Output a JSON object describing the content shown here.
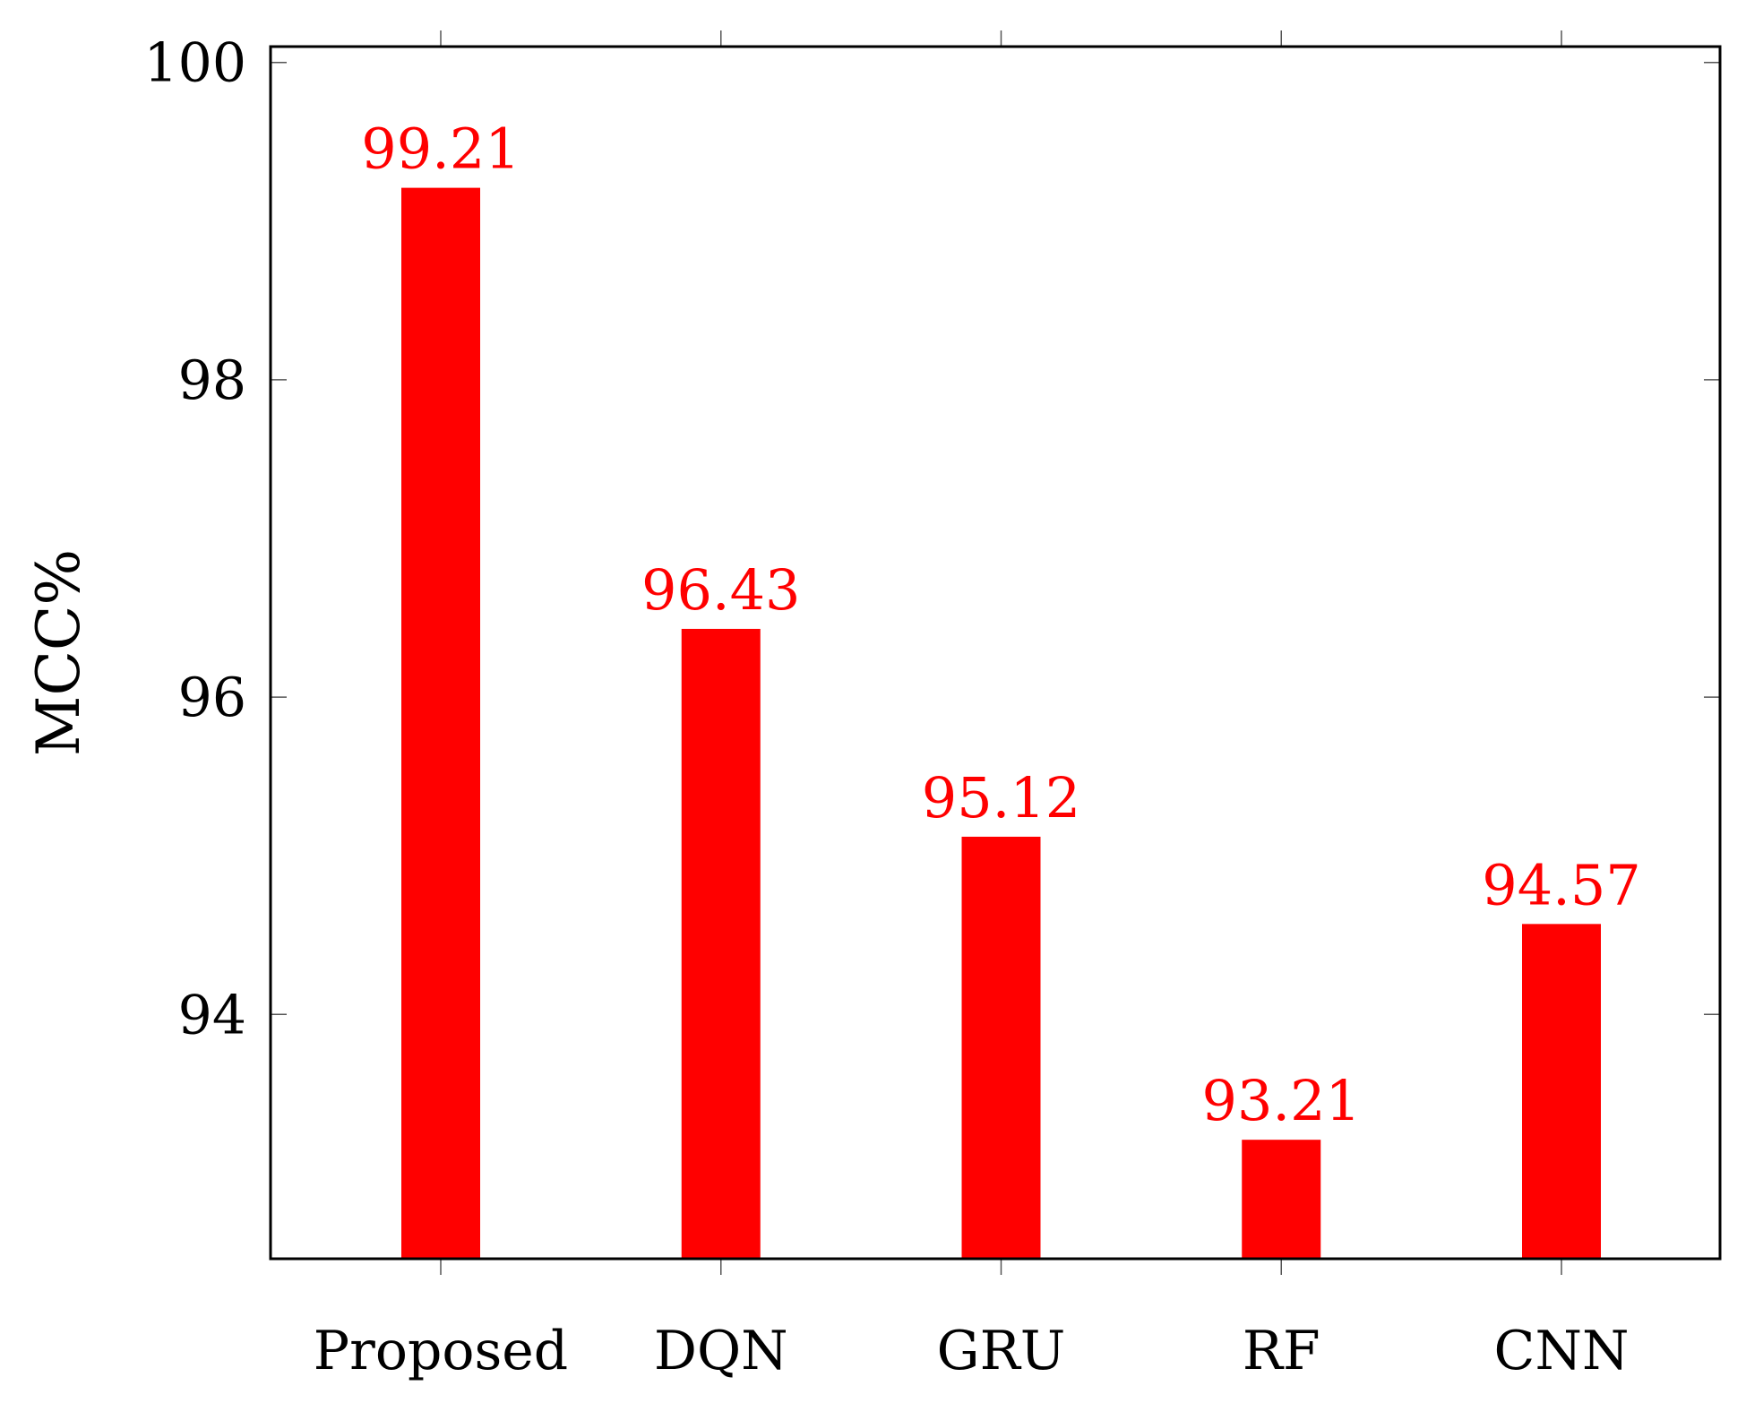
{
  "chart_data": {
    "type": "bar",
    "categories": [
      "Proposed",
      "DQN",
      "GRU",
      "RF",
      "CNN"
    ],
    "values": [
      99.21,
      96.43,
      95.12,
      93.21,
      94.57
    ],
    "value_labels": [
      "99.21",
      "96.43",
      "95.12",
      "93.21",
      "94.57"
    ],
    "ylabel": "MCC%",
    "ylim": [
      92.46,
      100.1
    ],
    "yticks": [
      94,
      96,
      98,
      100
    ],
    "ytick_labels": [
      "94",
      "96",
      "98",
      "100"
    ],
    "bar_color": "#ff0000",
    "grid": false,
    "legend": "none"
  }
}
